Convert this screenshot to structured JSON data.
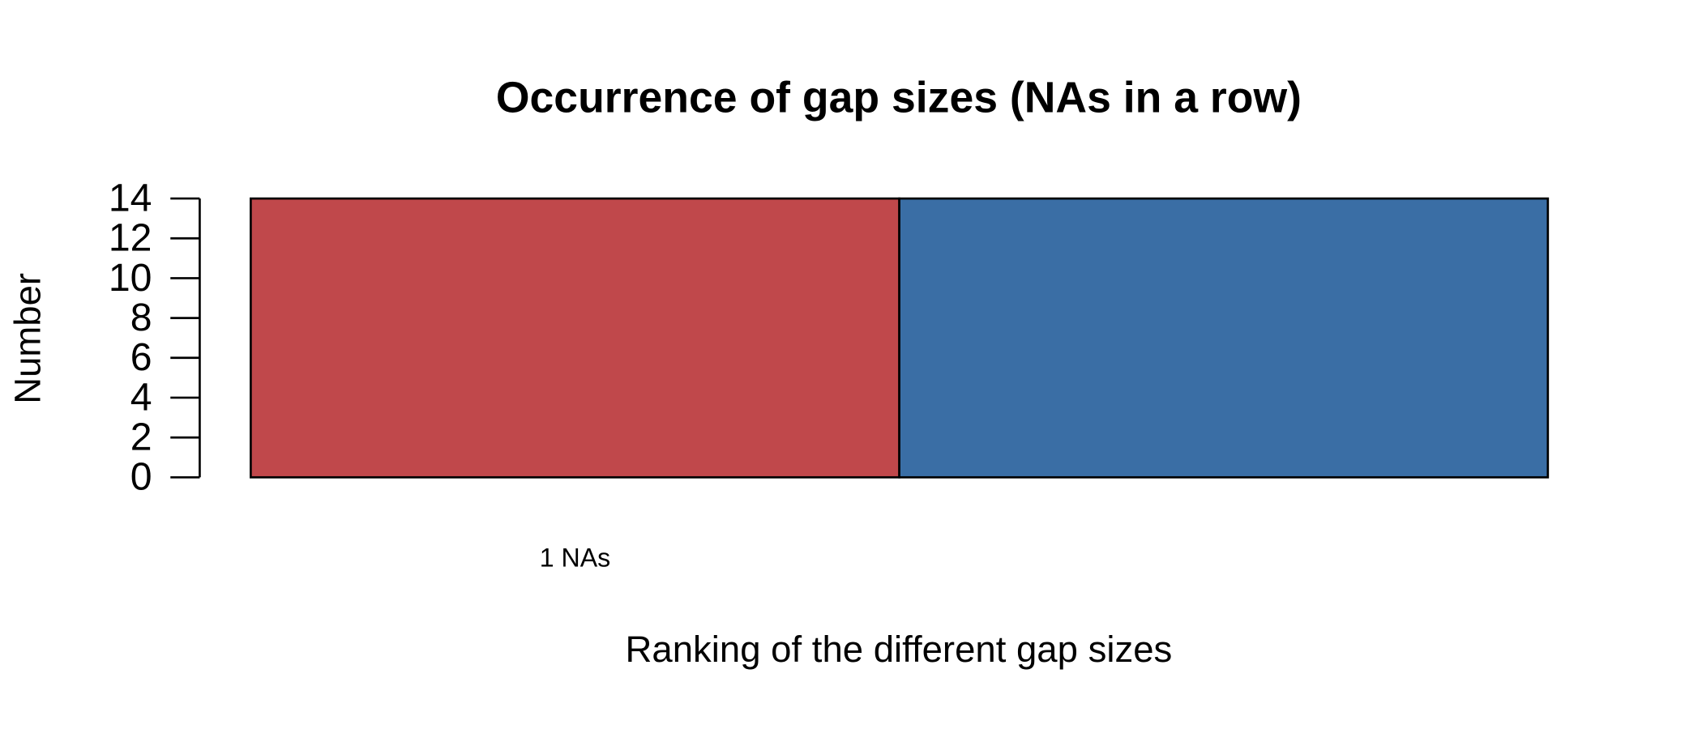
{
  "chart_data": {
    "type": "bar",
    "title": "Occurrence of gap sizes (NAs in a row)",
    "x_label": "Ranking of the different gap sizes",
    "y_label": "Number",
    "categories": [
      "1 NAs",
      null
    ],
    "values": [
      14,
      14
    ],
    "colors": [
      "#c0484b",
      "#3a6ea5"
    ],
    "ylim": [
      0,
      14
    ],
    "yticks": [
      0,
      2,
      4,
      6,
      8,
      10,
      12,
      14
    ]
  }
}
